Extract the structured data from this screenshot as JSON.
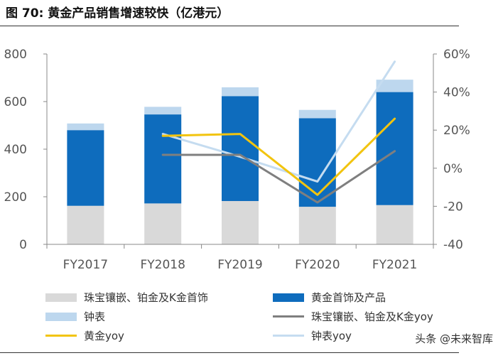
{
  "title": "图 70:  黄金产品销售增速较快（亿港元）",
  "watermark": "头条 @未来智库",
  "colors": {
    "jewelry": "#d9d9d9",
    "gold_products": "#0e6cbd",
    "watch": "#bdd7ee",
    "jewelry_yoy": "#7f7f7f",
    "gold_yoy": "#f2c40f",
    "watch_yoy": "#c5dcf0"
  },
  "chart_data": {
    "type": "bar",
    "stacked": true,
    "categories": [
      "FY2017",
      "FY2018",
      "FY2019",
      "FY2020",
      "FY2021"
    ],
    "y_left": {
      "ylim": [
        0,
        800
      ],
      "ticks": [
        "0",
        "200",
        "400",
        "600",
        "800"
      ]
    },
    "y_right": {
      "ylim": [
        -40,
        60
      ],
      "ticks": [
        "-40",
        "-20",
        "0%",
        "20%",
        "40%",
        "60%"
      ]
    },
    "series": [
      {
        "name": "珠宝镶嵌、铂金及K金首饰",
        "kind": "bar",
        "axis": "left",
        "color_key": "jewelry",
        "values": [
          162,
          172,
          182,
          158,
          165
        ]
      },
      {
        "name": "黄金首饰及产品",
        "kind": "bar",
        "axis": "left",
        "color_key": "gold_products",
        "values": [
          318,
          374,
          441,
          372,
          475
        ]
      },
      {
        "name": "钟表",
        "kind": "bar",
        "axis": "left",
        "color_key": "watch",
        "values": [
          28,
          32,
          37,
          35,
          52
        ]
      },
      {
        "name": "珠宝镶嵌、铂金及K金yoy",
        "kind": "line",
        "axis": "right",
        "color_key": "jewelry_yoy",
        "values": [
          null,
          7,
          7,
          -18,
          9
        ]
      },
      {
        "name": "黄金yoy",
        "kind": "line",
        "axis": "right",
        "color_key": "gold_yoy",
        "values": [
          null,
          17,
          18,
          -14,
          26
        ]
      },
      {
        "name": "钟表yoy",
        "kind": "line",
        "axis": "right",
        "color_key": "watch_yoy",
        "values": [
          null,
          18,
          6,
          -7,
          56
        ]
      }
    ],
    "legend": [
      {
        "label": "珠宝镶嵌、铂金及K金首饰",
        "style": "box",
        "color_key": "jewelry"
      },
      {
        "label": "黄金首饰及产品",
        "style": "box",
        "color_key": "gold_products"
      },
      {
        "label": "钟表",
        "style": "box",
        "color_key": "watch"
      },
      {
        "label": "珠宝镶嵌、铂金及K金yoy",
        "style": "line",
        "color_key": "jewelry_yoy"
      },
      {
        "label": "黄金yoy",
        "style": "line",
        "color_key": "gold_yoy"
      },
      {
        "label": "钟表yoy",
        "style": "line",
        "color_key": "watch_yoy"
      }
    ],
    "legend_position": "bottom",
    "grid": false
  }
}
